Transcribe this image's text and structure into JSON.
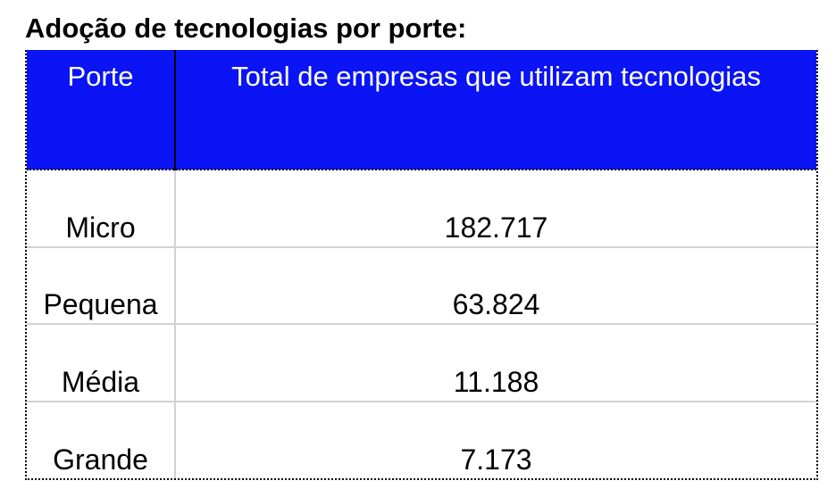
{
  "title": "Adoção de tecnologias por porte:",
  "table": {
    "headers": {
      "porte": "Porte",
      "total": "Total de empresas que utilizam tecnologias"
    },
    "rows": [
      {
        "porte": "Micro",
        "total": "182.717"
      },
      {
        "porte": "Pequena",
        "total": "63.824"
      },
      {
        "porte": "Média",
        "total": "11.188"
      },
      {
        "porte": "Grande",
        "total": "7.173"
      }
    ]
  },
  "colors": {
    "header_background": "#0a14f4",
    "header_text": "#ffffff",
    "grid_line": "#d2d2d2"
  }
}
